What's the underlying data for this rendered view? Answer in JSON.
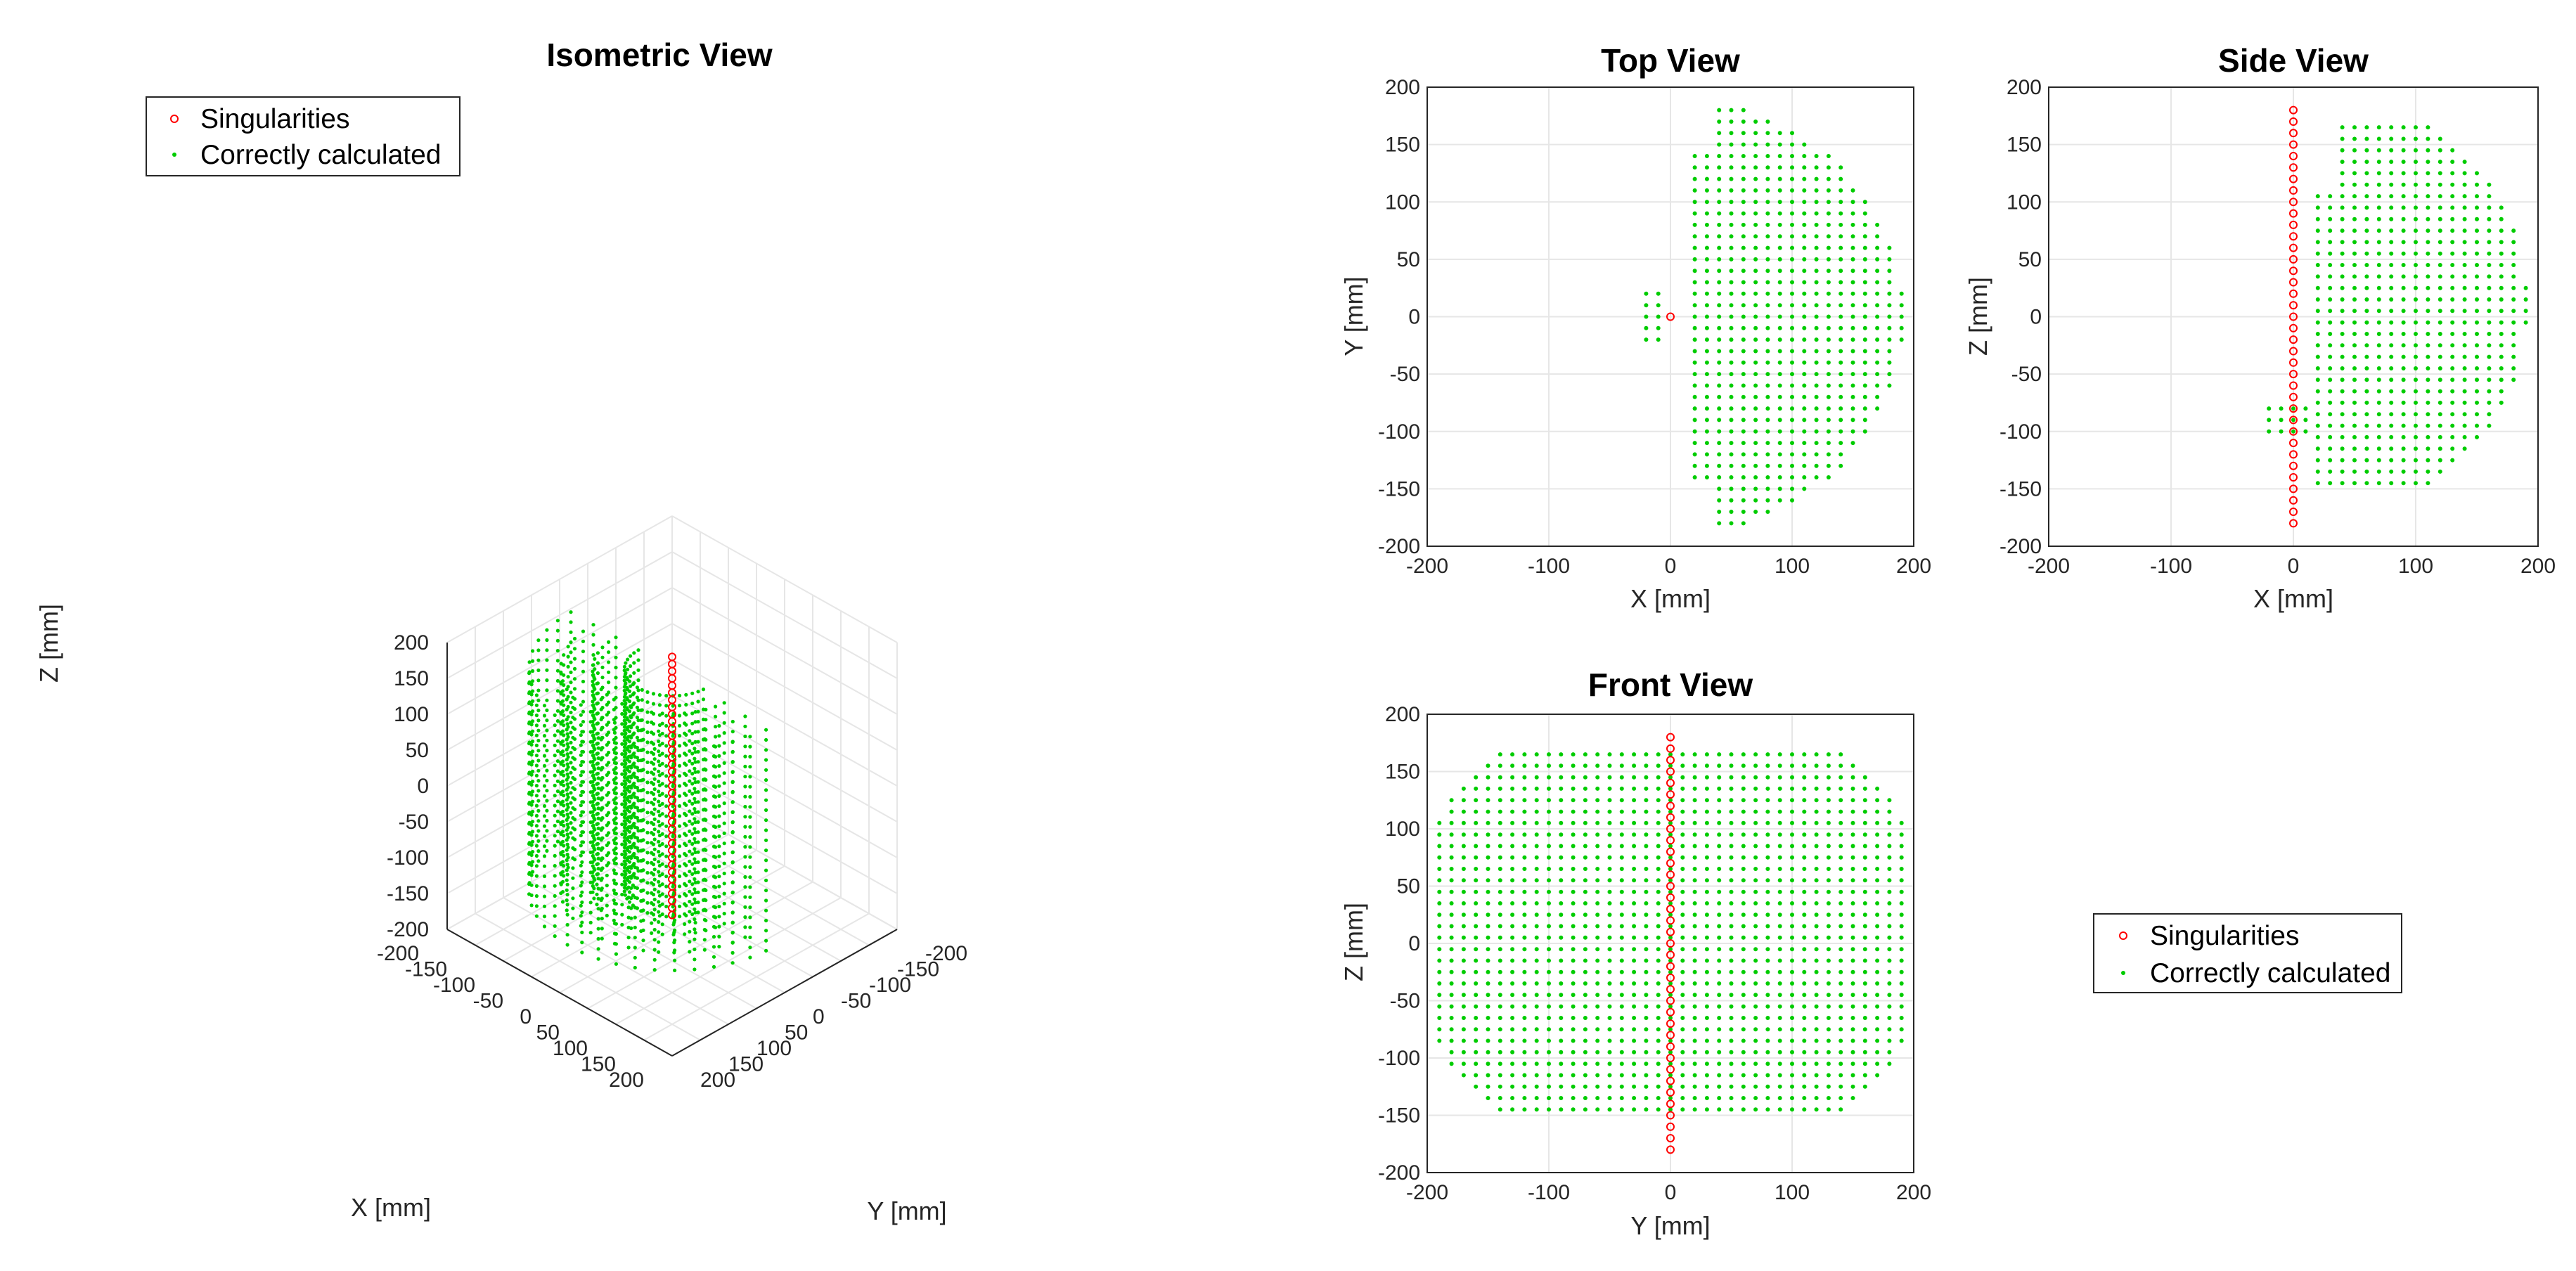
{
  "colors": {
    "singularity": "#ff0000",
    "correct": "#00cc00",
    "grid": "#e6e6e6",
    "axis": "#262626"
  },
  "legend": {
    "singularities": "Singularities",
    "correct": "Correctly calculated"
  },
  "chart_data": [
    {
      "id": "isometric",
      "type": "scatter3d",
      "title": "Isometric View",
      "xlabel": "X [mm]",
      "ylabel": "Y [mm]",
      "zlabel": "Z [mm]",
      "xlim": [
        -200,
        200
      ],
      "ylim": [
        -200,
        200
      ],
      "zlim": [
        -200,
        200
      ],
      "ticks": [
        -200,
        -150,
        -100,
        -50,
        0,
        50,
        100,
        150,
        200
      ],
      "grid": true,
      "legend_position": "top-left",
      "series": [
        {
          "name": "Singularities",
          "marker": "circle",
          "x": 0,
          "y": 0,
          "z_range": [
            -180,
            180
          ],
          "z_step": 10
        },
        {
          "name": "Correctly calculated",
          "marker": "dot",
          "shape": "cylindrical shell",
          "radius_range": [
            20,
            195
          ],
          "z_range": [
            -145,
            165
          ],
          "azimuth_range_deg": [
            -90,
            90
          ],
          "grid_step": 10
        }
      ]
    },
    {
      "id": "top",
      "type": "scatter",
      "title": "Top View",
      "xlabel": "X [mm]",
      "ylabel": "Y [mm]",
      "xlim": [
        -200,
        200
      ],
      "ylim": [
        -200,
        200
      ],
      "xticks": [
        -200,
        -100,
        0,
        100,
        200
      ],
      "yticks": [
        -200,
        -150,
        -100,
        -50,
        0,
        50,
        100,
        150,
        200
      ],
      "grid": true,
      "series": [
        {
          "name": "Singularities",
          "points": [
            [
              0,
              0
            ]
          ]
        },
        {
          "name": "Correctly calculated",
          "region": "half-disk x>=20, |y|<=sqrt(190^2 - x^2) clipped to |y|<=190, plus small cluster near x=-20..-10, |y|<=20",
          "step": 10
        }
      ]
    },
    {
      "id": "side",
      "type": "scatter",
      "title": "Side View",
      "xlabel": "X [mm]",
      "ylabel": "Z [mm]",
      "xlim": [
        -200,
        200
      ],
      "ylim": [
        -200,
        200
      ],
      "xticks": [
        -200,
        -100,
        0,
        100,
        200
      ],
      "yticks": [
        -200,
        -150,
        -100,
        -50,
        0,
        50,
        100,
        150,
        200
      ],
      "grid": true,
      "series": [
        {
          "name": "Singularities",
          "x": 0,
          "z_range": [
            -180,
            180
          ],
          "z_step": 10
        },
        {
          "name": "Correctly calculated",
          "region": "x from 20 to 190, z from -145 to 165 with rounded right edge; notch near x=-20..0, z=-100..-75",
          "step": 10
        }
      ]
    },
    {
      "id": "front",
      "type": "scatter",
      "title": "Front View",
      "xlabel": "Y [mm]",
      "ylabel": "Z [mm]",
      "xlim": [
        -200,
        200
      ],
      "ylim": [
        -200,
        200
      ],
      "xticks": [
        -200,
        -100,
        0,
        100,
        200
      ],
      "yticks": [
        -200,
        -150,
        -100,
        -50,
        0,
        50,
        100,
        150,
        200
      ],
      "grid": true,
      "series": [
        {
          "name": "Singularities",
          "y": 0,
          "z_range": [
            -180,
            180
          ],
          "z_step": 10
        },
        {
          "name": "Correctly calculated",
          "region": "|y|<=190, z from -145 to 165 with rounded corners",
          "step": 10
        }
      ]
    }
  ]
}
